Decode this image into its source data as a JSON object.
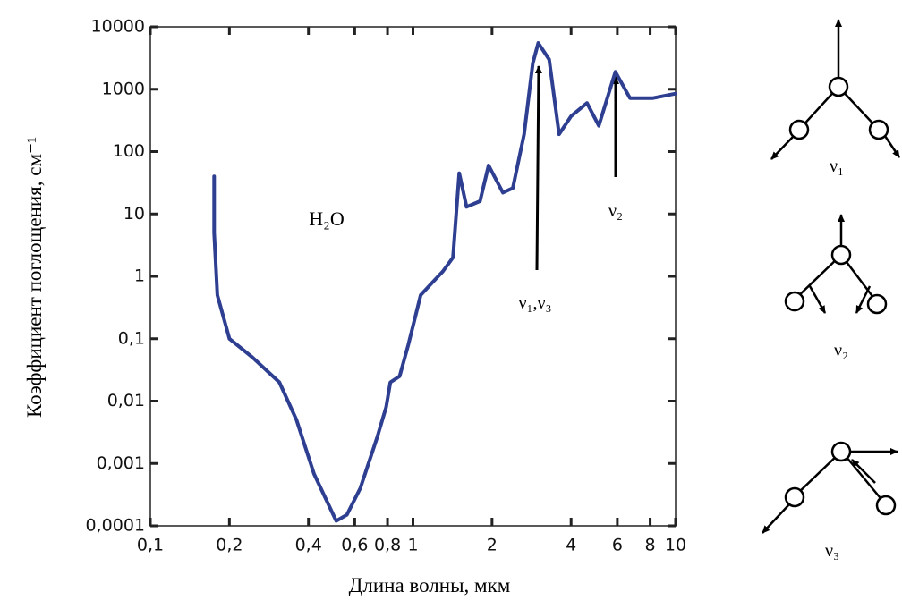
{
  "chart_data": {
    "type": "line",
    "x_label": "Длина волны, мкм",
    "y_label": "Коэффициент поглощения, см⁻¹",
    "x_scale": "log",
    "y_scale": "log",
    "color": "#2e3f91",
    "x": [
      0.175,
      0.175,
      0.18,
      0.2,
      0.245,
      0.31,
      0.36,
      0.42,
      0.51,
      0.56,
      0.63,
      0.73,
      0.79,
      0.82,
      0.89,
      0.96,
      1.07,
      1.17,
      1.3,
      1.42,
      1.5,
      1.6,
      1.8,
      1.94,
      2.2,
      2.4,
      2.65,
      2.86,
      3.0,
      3.3,
      3.6,
      4.0,
      4.6,
      5.1,
      5.9,
      6.7,
      8.2,
      10
    ],
    "values": [
      40,
      5,
      0.5,
      0.1,
      0.05,
      0.02,
      0.005,
      0.00068,
      0.00012,
      0.00015,
      0.0004,
      0.0026,
      0.008,
      0.02,
      0.025,
      0.08,
      0.5,
      0.75,
      1.2,
      2,
      45,
      13,
      16,
      60,
      22,
      26,
      190,
      2600,
      5500,
      3000,
      190,
      370,
      600,
      260,
      1900,
      720,
      720,
      850
    ],
    "xlim": [
      0.1,
      10
    ],
    "ylim": [
      0.0001,
      10000
    ],
    "xticks": [
      {
        "value": 0.1,
        "label": "0,1"
      },
      {
        "value": 0.2,
        "label": "0,2"
      },
      {
        "value": 0.4,
        "label": "0,4"
      },
      {
        "value": 0.6,
        "label": "0,6"
      },
      {
        "value": 0.8,
        "label": "0,8"
      },
      1,
      2,
      4,
      6,
      8,
      10
    ],
    "yticks": [
      {
        "value": 0.0001,
        "label": "0,0001"
      },
      {
        "value": 0.001,
        "label": "0,001"
      },
      {
        "value": 0.01,
        "label": "0,01"
      },
      {
        "value": 0.1,
        "label": "0,1"
      },
      1,
      10,
      100,
      1000,
      10000
    ],
    "annotations": [
      "H₂O",
      "ν₁,ν₃",
      "ν₂"
    ]
  },
  "modes": [
    "ν₁",
    "ν₂",
    "ν₃"
  ]
}
